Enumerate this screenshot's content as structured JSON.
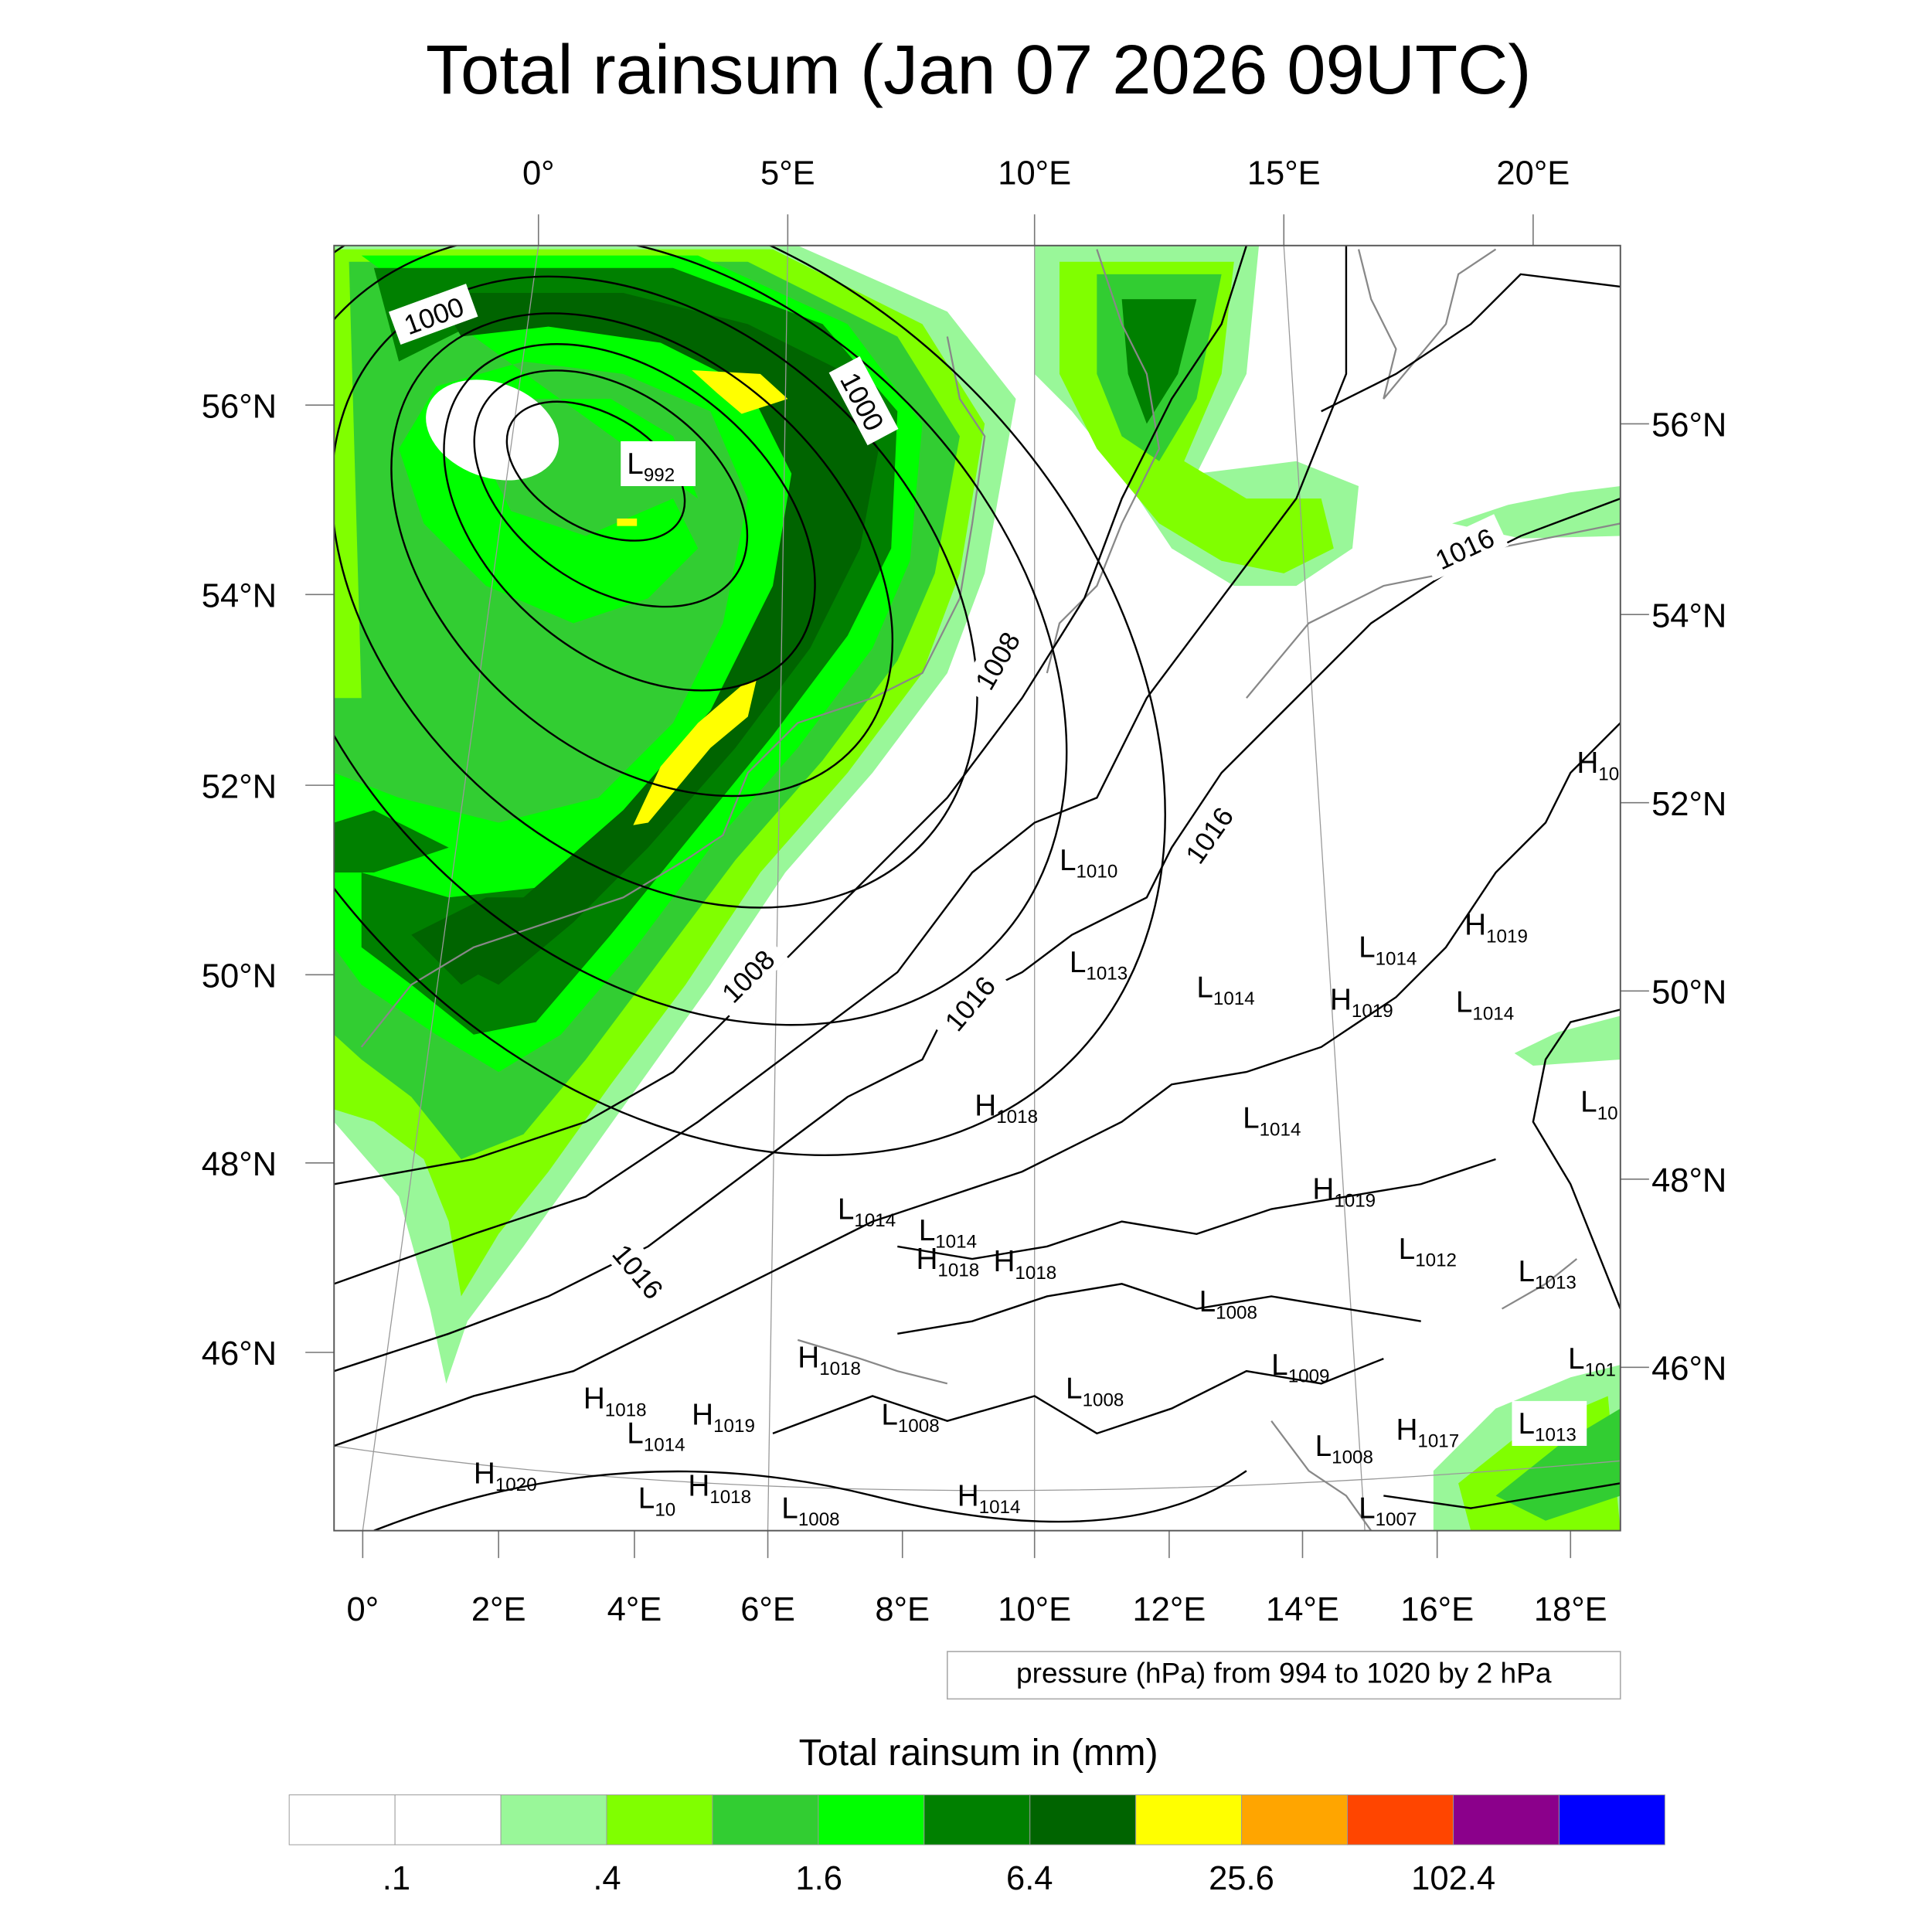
{
  "title": "Total rainsum (Jan 07 2026 09UTC)",
  "top_lon_labels": [
    "0°",
    "5°E",
    "10°E",
    "15°E",
    "20°E"
  ],
  "left_lat_labels": [
    "56°N",
    "54°N",
    "52°N",
    "50°N",
    "48°N",
    "46°N"
  ],
  "right_lat_labels": [
    "56°N",
    "54°N",
    "52°N",
    "50°N",
    "48°N",
    "46°N"
  ],
  "bottom_lon_labels": [
    "0°",
    "2°E",
    "4°E",
    "6°E",
    "8°E",
    "10°E",
    "12°E",
    "14°E",
    "16°E",
    "18°E"
  ],
  "info_box": "pressure (hPa) from 994 to 1020 by 2 hPa",
  "colorbar": {
    "title": "Total rainsum in (mm)",
    "labels": [
      ".1",
      ".4",
      "1.6",
      "6.4",
      "25.6",
      "102.4"
    ],
    "colors": [
      "#ffffff",
      "#ffffff",
      "#99f799",
      "#80ff00",
      "#32cd32",
      "#00ff00",
      "#008000",
      "#006400",
      "#ffff00",
      "#ffa500",
      "#ff4500",
      "#8b008b",
      "#0000ff"
    ]
  },
  "contour_labels": [
    "1000",
    "1000",
    "1008",
    "1008",
    "1016",
    "1016",
    "1016",
    "1016"
  ],
  "pressure_centers": [
    {
      "type": "L",
      "value": "992"
    },
    {
      "type": "L",
      "value": "1010"
    },
    {
      "type": "L",
      "value": "1013"
    },
    {
      "type": "L",
      "value": "1014"
    },
    {
      "type": "L",
      "value": "1014"
    },
    {
      "type": "H",
      "value": "1019"
    },
    {
      "type": "H",
      "value": "1019"
    },
    {
      "type": "L",
      "value": "1014"
    },
    {
      "type": "H",
      "value": "1018"
    },
    {
      "type": "L",
      "value": "1014"
    },
    {
      "type": "H",
      "value": "10"
    },
    {
      "type": "L",
      "value": "10"
    },
    {
      "type": "H",
      "value": "1019"
    },
    {
      "type": "L",
      "value": "1014"
    },
    {
      "type": "L",
      "value": "1014"
    },
    {
      "type": "H",
      "value": "1018"
    },
    {
      "type": "H",
      "value": "1018"
    },
    {
      "type": "L",
      "value": "1012"
    },
    {
      "type": "L",
      "value": "1013"
    },
    {
      "type": "L",
      "value": "1008"
    },
    {
      "type": "H",
      "value": "1018"
    },
    {
      "type": "L",
      "value": "101"
    },
    {
      "type": "L",
      "value": "1009"
    },
    {
      "type": "L",
      "value": "1008"
    },
    {
      "type": "H",
      "value": "1018"
    },
    {
      "type": "H",
      "value": "1019"
    },
    {
      "type": "L",
      "value": "1008"
    },
    {
      "type": "L",
      "value": "1014"
    },
    {
      "type": "H",
      "value": "1017"
    },
    {
      "type": "L",
      "value": "1013"
    },
    {
      "type": "L",
      "value": "1008"
    },
    {
      "type": "H",
      "value": "1020"
    },
    {
      "type": "L",
      "value": "10"
    },
    {
      "type": "H",
      "value": "1018"
    },
    {
      "type": "L",
      "value": "1008"
    },
    {
      "type": "H",
      "value": "1014"
    },
    {
      "type": "L",
      "value": "1007"
    }
  ]
}
